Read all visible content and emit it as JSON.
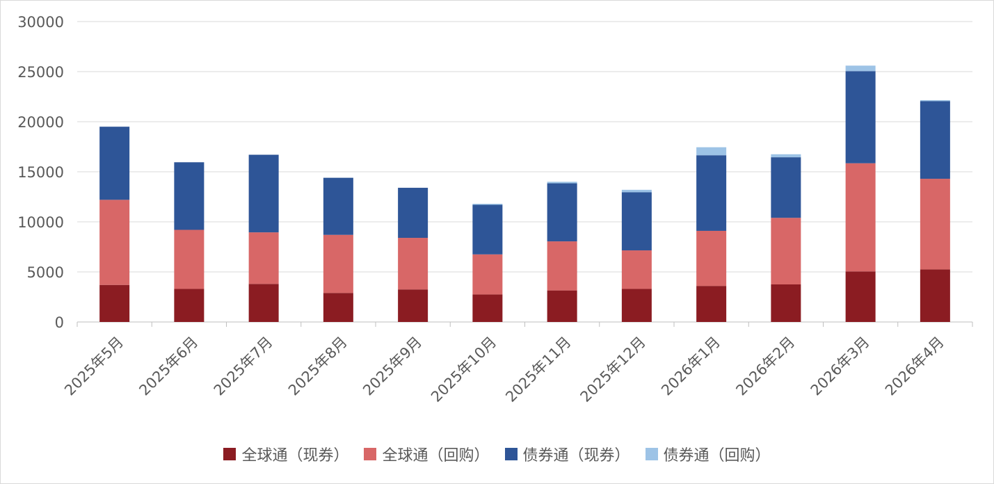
{
  "chart_data": {
    "type": "bar",
    "stacked": true,
    "categories": [
      "2025年5月",
      "2025年6月",
      "2025年7月",
      "2025年8月",
      "2025年9月",
      "2025年10月",
      "2025年11月",
      "2025年12月",
      "2026年1月",
      "2026年2月",
      "2026年3月",
      "2026年4月"
    ],
    "series": [
      {
        "name": "全球通（现券）",
        "color": "#8b1c22",
        "values": [
          3700,
          3300,
          3800,
          2900,
          3250,
          2750,
          3150,
          3300,
          3600,
          3750,
          5050,
          5250
        ]
      },
      {
        "name": "全球通（回购）",
        "color": "#d86767",
        "values": [
          8500,
          5900,
          5150,
          5800,
          5150,
          4000,
          4900,
          3850,
          5500,
          6650,
          10800,
          9050
        ]
      },
      {
        "name": "债券通（现券）",
        "color": "#2e5597",
        "values": [
          7300,
          6750,
          7750,
          5700,
          5000,
          4950,
          5800,
          5800,
          7550,
          6050,
          9200,
          7750
        ]
      },
      {
        "name": "债券通（回购）",
        "color": "#9dc3e6",
        "values": [
          0,
          0,
          0,
          0,
          0,
          100,
          150,
          250,
          800,
          300,
          550,
          100
        ]
      }
    ],
    "ylim": [
      0,
      30000
    ],
    "yticks": [
      0,
      5000,
      10000,
      15000,
      20000,
      25000,
      30000
    ],
    "grid": true,
    "legend": "bottom"
  }
}
